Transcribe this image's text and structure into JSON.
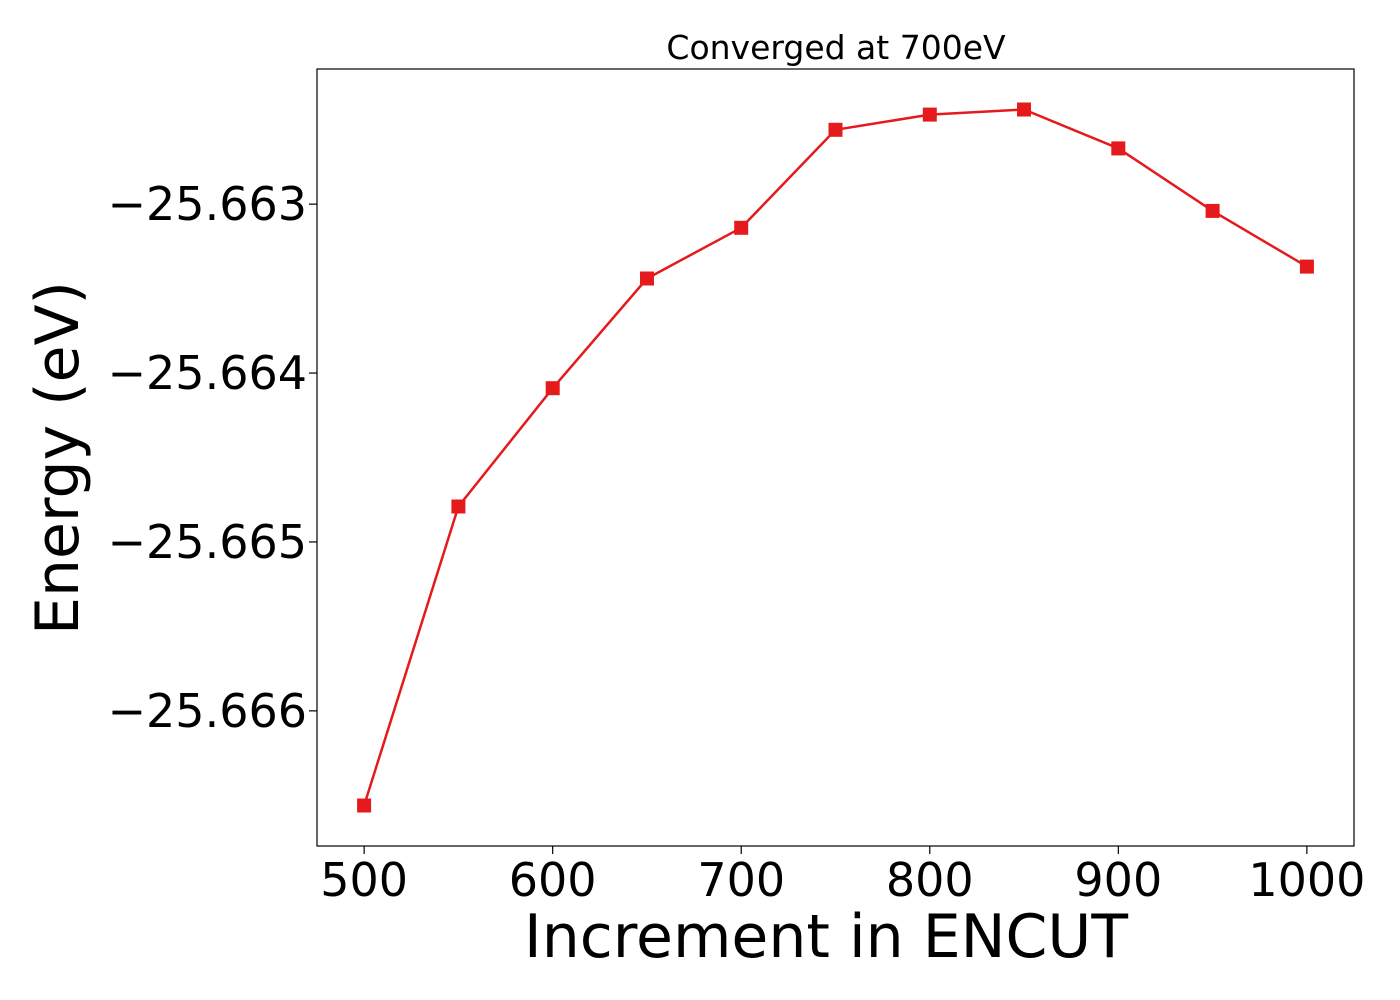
{
  "chart_data": {
    "type": "line",
    "title": "Converged at 700eV",
    "xlabel": "Increment in ENCUT",
    "ylabel": "Energy (eV)",
    "x": [
      500,
      550,
      600,
      650,
      700,
      750,
      800,
      850,
      900,
      950,
      1000
    ],
    "series": [
      {
        "values": [
          -25.66656,
          -25.66479,
          -25.66409,
          -25.66344,
          -25.66314,
          -25.66256,
          -25.66247,
          -25.66244,
          -25.66267,
          -25.66304,
          -25.66337
        ],
        "color": "#e41a1c",
        "marker": "square"
      }
    ],
    "xlim": [
      475,
      1025
    ],
    "ylim": [
      -25.6668,
      -25.6622
    ],
    "xticks": [
      500,
      600,
      700,
      800,
      900,
      1000
    ],
    "xtick_labels": [
      "500",
      "600",
      "700",
      "800",
      "900",
      "1000"
    ],
    "yticks": [
      -25.663,
      -25.664,
      -25.665,
      -25.666
    ],
    "ytick_labels": [
      "−25.663",
      "−25.664",
      "−25.665",
      "−25.666"
    ],
    "grid": false,
    "legend": "none"
  }
}
